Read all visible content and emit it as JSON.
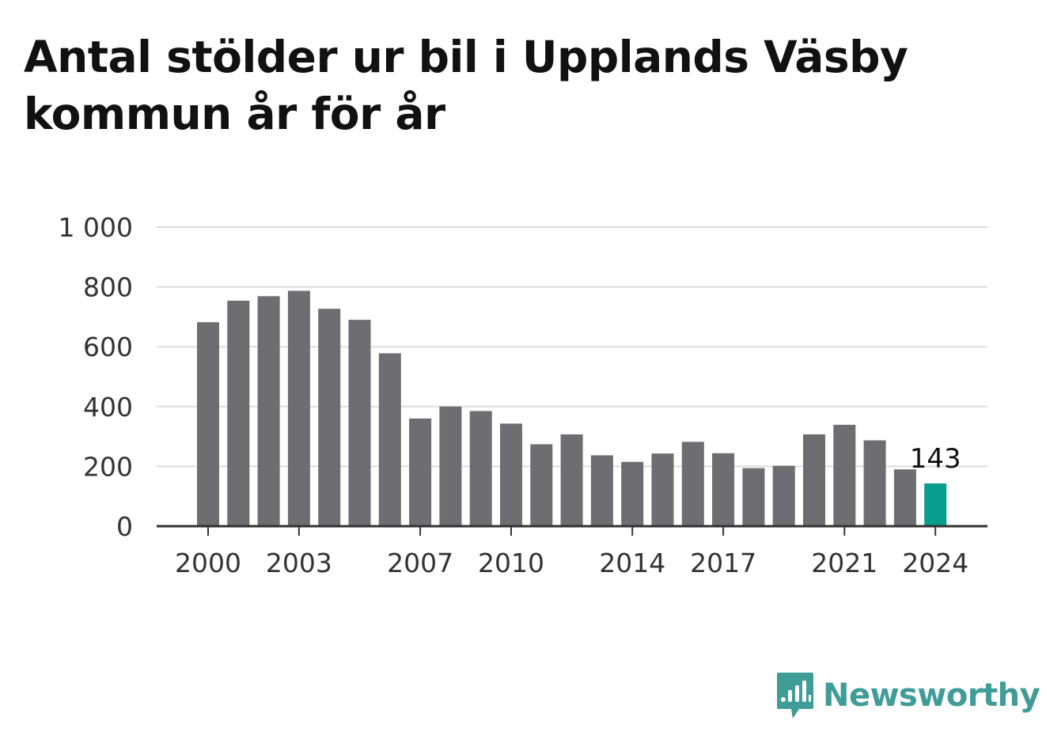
{
  "title": "Antal stölder ur bil i Upplands Väsby kommun år för år",
  "brand": "Newsworthy",
  "colors": {
    "bar": "#6e6d72",
    "highlight": "#0a9e8f",
    "grid": "#dddddd",
    "axis": "#333333",
    "brand": "#3f9c97"
  },
  "chart_data": {
    "type": "bar",
    "title": "Antal stölder ur bil i Upplands Väsby kommun år för år",
    "categories": [
      "2000",
      "2001",
      "2002",
      "2003",
      "2004",
      "2005",
      "2006",
      "2007",
      "2008",
      "2009",
      "2010",
      "2011",
      "2012",
      "2013",
      "2014",
      "2015",
      "2016",
      "2017",
      "2018",
      "2019",
      "2020",
      "2021",
      "2022",
      "2023",
      "2024"
    ],
    "values": [
      682,
      754,
      769,
      787,
      727,
      690,
      578,
      360,
      400,
      385,
      343,
      274,
      307,
      237,
      215,
      243,
      282,
      244,
      194,
      202,
      307,
      339,
      287,
      190,
      143
    ],
    "highlight_index": 24,
    "data_labels": [
      {
        "index": 24,
        "text": "143"
      }
    ],
    "x_tick_labels": [
      "2000",
      "2003",
      "2007",
      "2010",
      "2014",
      "2017",
      "2021",
      "2024"
    ],
    "y_ticks": [
      0,
      200,
      400,
      600,
      800,
      1000
    ],
    "y_tick_labels": [
      "0",
      "200",
      "400",
      "600",
      "800",
      "1 000"
    ],
    "ylim": [
      0,
      1000
    ],
    "xlabel": "",
    "ylabel": "",
    "grid": true,
    "legend": "none"
  }
}
